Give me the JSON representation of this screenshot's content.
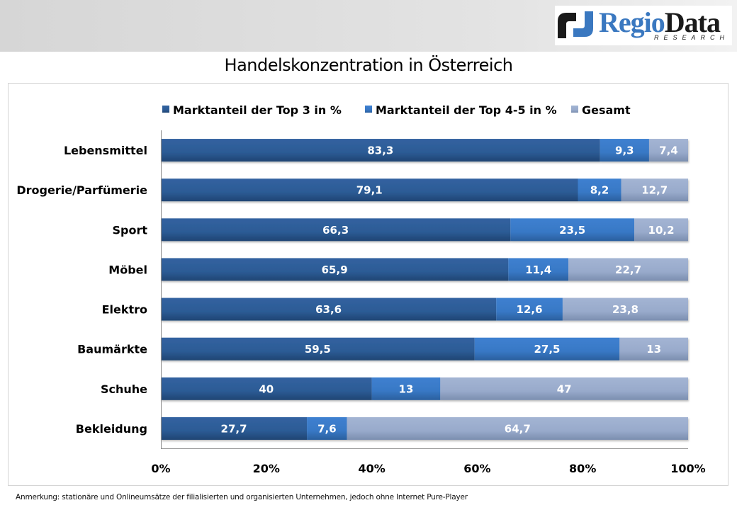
{
  "header": {
    "logo": {
      "name_part1": "Regio",
      "name_part2": "Data",
      "subtitle": "RESEARCH"
    }
  },
  "page_title": "Handelskonzentration in Österreich",
  "footnote": "Anmerkung: stationäre und Onlineumsätze der filialisierten und organisierten Unternehmen, jedoch ohne Internet Pure-Player",
  "colors": {
    "series_top3": "#2c5b95",
    "series_top45": "#3878c5",
    "series_gesamt": "#98aacb",
    "logo_blue": "#3a78c0",
    "logo_dark": "#1a1a1a"
  },
  "chart_data": {
    "type": "bar",
    "orientation": "horizontal",
    "stacked": "percent",
    "title": "Handelskonzentration in Österreich",
    "xlabel": "",
    "ylabel": "",
    "xlim": [
      0,
      100
    ],
    "x_ticks": [
      "0%",
      "20%",
      "40%",
      "60%",
      "80%",
      "100%"
    ],
    "legend_position": "top",
    "grid": false,
    "categories": [
      "Lebensmittel",
      "Drogerie/Parfümerie",
      "Sport",
      "Möbel",
      "Elektro",
      "Baumärkte",
      "Schuhe",
      "Bekleidung"
    ],
    "series": [
      {
        "name": "Marktanteil der Top 3 in %",
        "values": [
          83.3,
          79.1,
          66.3,
          65.9,
          63.6,
          59.5,
          40,
          27.7
        ],
        "labels": [
          "83,3",
          "79,1",
          "66,3",
          "65,9",
          "63,6",
          "59,5",
          "40",
          "27,7"
        ]
      },
      {
        "name": "Marktanteil der Top 4-5 in %",
        "values": [
          9.3,
          8.2,
          23.5,
          11.4,
          12.6,
          27.5,
          13,
          7.6
        ],
        "labels": [
          "9,3",
          "8,2",
          "23,5",
          "11,4",
          "12,6",
          "27,5",
          "13",
          "7,6"
        ]
      },
      {
        "name": "Gesamt",
        "values": [
          7.4,
          12.7,
          10.2,
          22.7,
          23.8,
          13,
          47,
          64.7
        ],
        "labels": [
          "7,4",
          "12,7",
          "10,2",
          "22,7",
          "23,8",
          "13",
          "47",
          "64,7"
        ]
      }
    ]
  }
}
